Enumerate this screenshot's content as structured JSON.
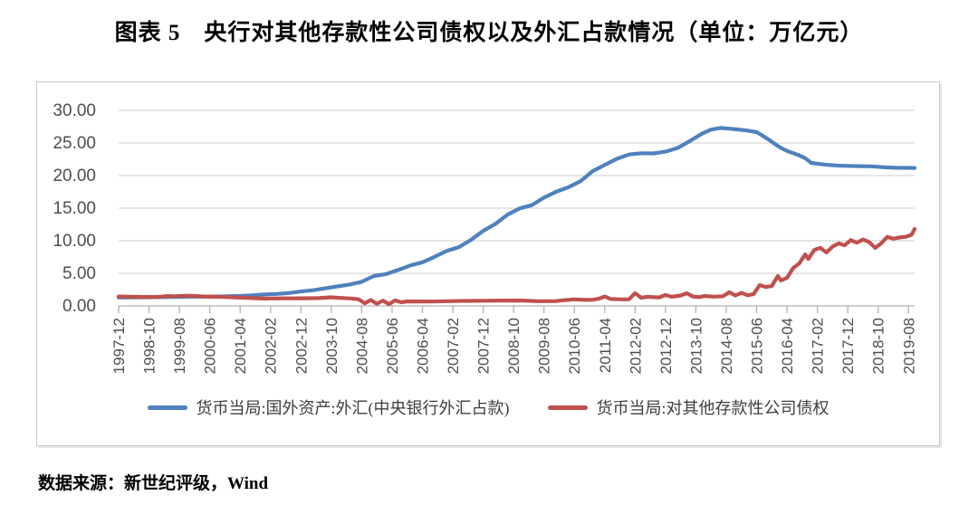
{
  "title": "图表 5　央行对其他存款性公司债权以及外汇占款情况（单位：万亿元）",
  "source_note": "数据来源：新世纪评级，Wind",
  "chart_data": {
    "type": "line",
    "title": "图表 5　央行对其他存款性公司债权以及外汇占款情况",
    "unit": "万亿元",
    "ylim": [
      0,
      30
    ],
    "grid": "horizontal",
    "legend_position": "bottom",
    "y_ticks": [
      {
        "label": "30.00",
        "value": 30
      },
      {
        "label": "25.00",
        "value": 25
      },
      {
        "label": "20.00",
        "value": 20
      },
      {
        "label": "15.00",
        "value": 15
      },
      {
        "label": "10.00",
        "value": 10
      },
      {
        "label": "5.00",
        "value": 5
      },
      {
        "label": "0.00",
        "value": 0
      }
    ],
    "x_tick_interval_months": 10,
    "x_tick_labels": [
      "1997-12",
      "1998-10",
      "1999-08",
      "2000-06",
      "2001-04",
      "2002-02",
      "2002-12",
      "2003-10",
      "2004-08",
      "2005-06",
      "2006-04",
      "2007-02",
      "2007-12",
      "2008-10",
      "2009-08",
      "2010-06",
      "2011-04",
      "2012-02",
      "2012-12",
      "2013-10",
      "2014-08",
      "2015-06",
      "2016-04",
      "2017-02",
      "2017-12",
      "2018-10",
      "2019-08"
    ],
    "series": [
      {
        "name": "货币当局:国外资产:外汇(中央银行外汇占款)",
        "color": "#4F81BD",
        "points": [
          [
            "1997-12",
            1.3
          ],
          [
            "1998-04",
            1.31
          ],
          [
            "1998-08",
            1.32
          ],
          [
            "1998-12",
            1.34
          ],
          [
            "1999-04",
            1.36
          ],
          [
            "1999-08",
            1.39
          ],
          [
            "1999-12",
            1.41
          ],
          [
            "2000-04",
            1.42
          ],
          [
            "2000-08",
            1.44
          ],
          [
            "2000-12",
            1.48
          ],
          [
            "2001-04",
            1.53
          ],
          [
            "2001-08",
            1.62
          ],
          [
            "2001-12",
            1.77
          ],
          [
            "2002-04",
            1.84
          ],
          [
            "2002-08",
            1.97
          ],
          [
            "2002-12",
            2.21
          ],
          [
            "2003-04",
            2.4
          ],
          [
            "2003-08",
            2.7
          ],
          [
            "2003-12",
            2.98
          ],
          [
            "2004-04",
            3.28
          ],
          [
            "2004-08",
            3.7
          ],
          [
            "2004-12",
            4.59
          ],
          [
            "2005-04",
            4.88
          ],
          [
            "2005-08",
            5.52
          ],
          [
            "2005-12",
            6.21
          ],
          [
            "2006-04",
            6.69
          ],
          [
            "2006-08",
            7.53
          ],
          [
            "2006-12",
            8.44
          ],
          [
            "2007-04",
            9.02
          ],
          [
            "2007-08",
            10.14
          ],
          [
            "2007-12",
            11.52
          ],
          [
            "2008-04",
            12.58
          ],
          [
            "2008-08",
            13.98
          ],
          [
            "2008-12",
            14.96
          ],
          [
            "2009-04",
            15.46
          ],
          [
            "2009-08",
            16.61
          ],
          [
            "2009-12",
            17.51
          ],
          [
            "2010-04",
            18.19
          ],
          [
            "2010-08",
            19.13
          ],
          [
            "2010-12",
            20.68
          ],
          [
            "2011-04",
            21.63
          ],
          [
            "2011-08",
            22.57
          ],
          [
            "2011-12",
            23.24
          ],
          [
            "2012-04",
            23.43
          ],
          [
            "2012-08",
            23.4
          ],
          [
            "2012-12",
            23.67
          ],
          [
            "2013-04",
            24.24
          ],
          [
            "2013-08",
            25.29
          ],
          [
            "2013-12",
            26.43
          ],
          [
            "2014-03",
            27.05
          ],
          [
            "2014-06",
            27.3
          ],
          [
            "2014-09",
            27.21
          ],
          [
            "2014-12",
            27.07
          ],
          [
            "2015-03",
            26.9
          ],
          [
            "2015-06",
            26.66
          ],
          [
            "2015-08",
            26.1
          ],
          [
            "2015-10",
            25.52
          ],
          [
            "2015-12",
            24.85
          ],
          [
            "2016-02",
            24.24
          ],
          [
            "2016-04",
            23.78
          ],
          [
            "2016-06",
            23.44
          ],
          [
            "2016-08",
            23.11
          ],
          [
            "2016-10",
            22.66
          ],
          [
            "2016-12",
            21.94
          ],
          [
            "2017-03",
            21.77
          ],
          [
            "2017-06",
            21.62
          ],
          [
            "2017-09",
            21.53
          ],
          [
            "2017-12",
            21.48
          ],
          [
            "2018-04",
            21.45
          ],
          [
            "2018-08",
            21.41
          ],
          [
            "2018-12",
            21.26
          ],
          [
            "2019-04",
            21.2
          ],
          [
            "2019-08",
            21.18
          ],
          [
            "2019-10",
            21.17
          ]
        ]
      },
      {
        "name": "货币当局:对其他存款性公司债权",
        "color": "#C0504D",
        "points": [
          [
            "1997-12",
            1.44
          ],
          [
            "1998-04",
            1.42
          ],
          [
            "1998-08",
            1.38
          ],
          [
            "1998-12",
            1.37
          ],
          [
            "1999-02",
            1.42
          ],
          [
            "1999-04",
            1.52
          ],
          [
            "1999-06",
            1.48
          ],
          [
            "1999-10",
            1.55
          ],
          [
            "1999-12",
            1.54
          ],
          [
            "2000-04",
            1.45
          ],
          [
            "2000-08",
            1.4
          ],
          [
            "2000-12",
            1.35
          ],
          [
            "2001-04",
            1.28
          ],
          [
            "2001-08",
            1.2
          ],
          [
            "2001-12",
            1.13
          ],
          [
            "2002-06",
            1.15
          ],
          [
            "2002-12",
            1.16
          ],
          [
            "2003-06",
            1.2
          ],
          [
            "2003-10",
            1.32
          ],
          [
            "2003-12",
            1.25
          ],
          [
            "2004-04",
            1.15
          ],
          [
            "2004-07",
            1.02
          ],
          [
            "2004-09",
            0.4
          ],
          [
            "2004-11",
            0.9
          ],
          [
            "2005-01",
            0.32
          ],
          [
            "2005-03",
            0.8
          ],
          [
            "2005-05",
            0.28
          ],
          [
            "2005-07",
            0.85
          ],
          [
            "2005-09",
            0.55
          ],
          [
            "2005-11",
            0.7
          ],
          [
            "2006-03",
            0.68
          ],
          [
            "2006-07",
            0.66
          ],
          [
            "2006-12",
            0.72
          ],
          [
            "2007-06",
            0.76
          ],
          [
            "2007-12",
            0.79
          ],
          [
            "2008-06",
            0.82
          ],
          [
            "2008-12",
            0.84
          ],
          [
            "2009-06",
            0.72
          ],
          [
            "2009-12",
            0.74
          ],
          [
            "2010-02",
            0.85
          ],
          [
            "2010-06",
            1.0
          ],
          [
            "2010-10",
            0.92
          ],
          [
            "2010-12",
            0.95
          ],
          [
            "2011-02",
            1.1
          ],
          [
            "2011-04",
            1.45
          ],
          [
            "2011-06",
            1.05
          ],
          [
            "2011-10",
            1.0
          ],
          [
            "2011-12",
            1.02
          ],
          [
            "2012-02",
            1.95
          ],
          [
            "2012-04",
            1.25
          ],
          [
            "2012-06",
            1.4
          ],
          [
            "2012-08",
            1.35
          ],
          [
            "2012-10",
            1.3
          ],
          [
            "2012-12",
            1.67
          ],
          [
            "2013-02",
            1.4
          ],
          [
            "2013-05",
            1.6
          ],
          [
            "2013-07",
            1.95
          ],
          [
            "2013-09",
            1.45
          ],
          [
            "2013-11",
            1.35
          ],
          [
            "2014-01",
            1.52
          ],
          [
            "2014-04",
            1.42
          ],
          [
            "2014-07",
            1.48
          ],
          [
            "2014-09",
            2.1
          ],
          [
            "2014-11",
            1.6
          ],
          [
            "2015-01",
            2.0
          ],
          [
            "2015-03",
            1.62
          ],
          [
            "2015-05",
            1.8
          ],
          [
            "2015-07",
            3.2
          ],
          [
            "2015-09",
            2.9
          ],
          [
            "2015-11",
            3.05
          ],
          [
            "2016-01",
            4.6
          ],
          [
            "2016-02",
            3.9
          ],
          [
            "2016-04",
            4.3
          ],
          [
            "2016-06",
            5.8
          ],
          [
            "2016-08",
            6.5
          ],
          [
            "2016-10",
            7.9
          ],
          [
            "2016-11",
            7.2
          ],
          [
            "2017-01",
            8.6
          ],
          [
            "2017-03",
            8.9
          ],
          [
            "2017-05",
            8.2
          ],
          [
            "2017-07",
            9.1
          ],
          [
            "2017-09",
            9.6
          ],
          [
            "2017-11",
            9.3
          ],
          [
            "2018-01",
            10.1
          ],
          [
            "2018-03",
            9.7
          ],
          [
            "2018-05",
            10.2
          ],
          [
            "2018-07",
            9.8
          ],
          [
            "2018-09",
            8.9
          ],
          [
            "2018-11",
            9.6
          ],
          [
            "2019-01",
            10.6
          ],
          [
            "2019-03",
            10.3
          ],
          [
            "2019-05",
            10.5
          ],
          [
            "2019-07",
            10.6
          ],
          [
            "2019-09",
            10.9
          ],
          [
            "2019-10",
            11.8
          ]
        ]
      }
    ]
  },
  "colors": {
    "series_fx_blue": "#4F81BD",
    "series_claims_red": "#C0504D",
    "gridline": "#d6d6d6",
    "axis": "#b0b0b0",
    "tick_label": "#4d4d4d",
    "box_border": "#c9c9c9"
  }
}
